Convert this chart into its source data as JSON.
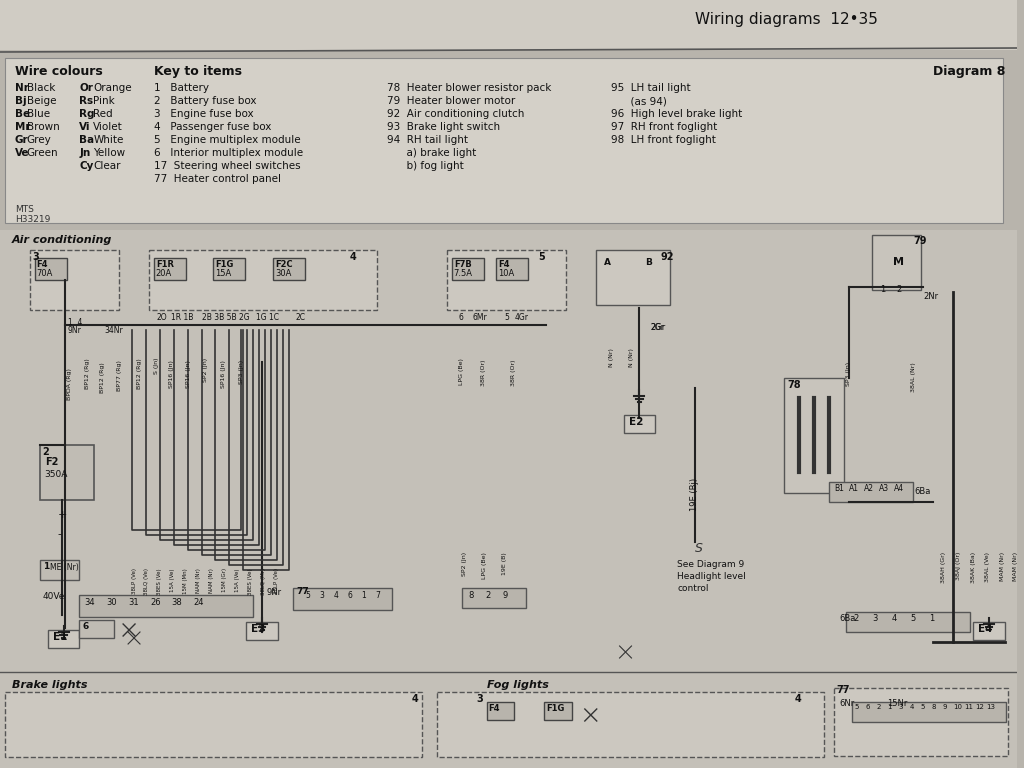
{
  "title": "Wiring diagrams  12•35",
  "bg_color": "#c8c4bc",
  "header_bg": "#d4d0c8",
  "legend_bg": "#d8d4cc",
  "diagram_label": "Diagram 8",
  "wire_colours_title": "Wire colours",
  "key_to_items_title": "Key to items",
  "wire_colours": [
    [
      "Nr",
      "Black",
      "Or",
      "Orange"
    ],
    [
      "Bj",
      "Beige",
      "Rs",
      "Pink"
    ],
    [
      "Be",
      "Blue",
      "Rg",
      "Red"
    ],
    [
      "Mr",
      "Brown",
      "Vi",
      "Violet"
    ],
    [
      "Gr",
      "Grey",
      "Ba",
      "White"
    ],
    [
      "Ve",
      "Green",
      "Jn",
      "Yellow"
    ],
    [
      "",
      "",
      "Cy",
      "Clear"
    ]
  ],
  "key_items_col1": [
    "1   Battery",
    "2   Battery fuse box",
    "3   Engine fuse box",
    "4   Passenger fuse box",
    "5   Engine multiplex module",
    "6   Interior multiplex module",
    "17  Steering wheel switches",
    "77  Heater control panel"
  ],
  "key_items_col2": [
    "78  Heater blower resistor pack",
    "79  Heater blower motor",
    "92  Air conditioning clutch",
    "93  Brake light switch",
    "94  RH tail light",
    "      a) brake light",
    "      b) fog light"
  ],
  "key_items_col3": [
    "95  LH tail light",
    "      (as 94)",
    "96  High level brake light",
    "97  RH front foglight",
    "98  LH front foglight"
  ],
  "mts_code": "MTS\nH33219",
  "section_air": "Air conditioning",
  "section_brake": "Brake lights",
  "section_fog": "Fog lights",
  "page_bg": "#b8b4ac"
}
